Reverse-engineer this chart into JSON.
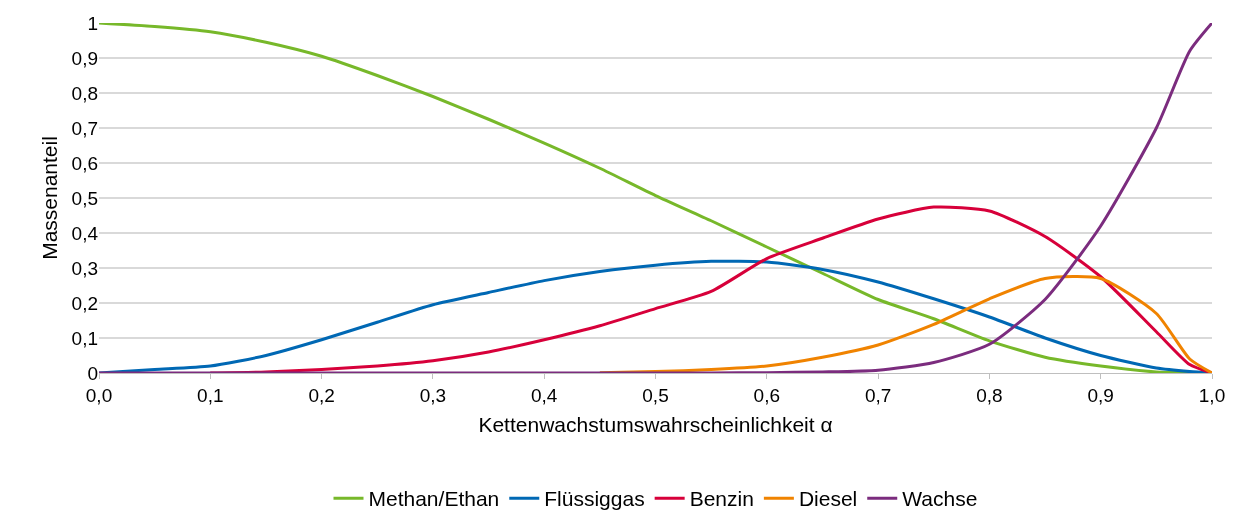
{
  "chart_data": {
    "type": "line",
    "xlabel": "Kettenwachstumswahrscheinlichkeit α",
    "ylabel": "Massenanteil",
    "x": [
      0,
      0.05,
      0.1,
      0.15,
      0.2,
      0.25,
      0.3,
      0.35,
      0.4,
      0.45,
      0.5,
      0.55,
      0.6,
      0.65,
      0.7,
      0.75,
      0.8,
      0.85,
      0.9,
      0.95,
      0.98,
      1
    ],
    "series": [
      {
        "name": "Methan/Ethan",
        "color": "#77b82a",
        "values": [
          1,
          0.99,
          0.975,
          0.945,
          0.905,
          0.85,
          0.79,
          0.725,
          0.657,
          0.585,
          0.507,
          0.435,
          0.36,
          0.285,
          0.21,
          0.155,
          0.092,
          0.045,
          0.02,
          0.003,
          0.001,
          0
        ]
      },
      {
        "name": "Flüssiggas",
        "color": "#0068b4",
        "values": [
          0,
          0.01,
          0.02,
          0.05,
          0.095,
          0.145,
          0.195,
          0.23,
          0.264,
          0.29,
          0.308,
          0.319,
          0.317,
          0.296,
          0.26,
          0.212,
          0.16,
          0.1,
          0.05,
          0.014,
          0.004,
          0
        ]
      },
      {
        "name": "Benzin",
        "color": "#d7003a",
        "values": [
          null,
          null,
          0,
          0.003,
          0.01,
          0.02,
          0.035,
          0.06,
          0.095,
          0.135,
          0.184,
          0.233,
          0.327,
          0.385,
          0.44,
          0.474,
          0.463,
          0.39,
          0.275,
          0.118,
          0.024,
          0
        ]
      },
      {
        "name": "Diesel",
        "color": "#f08300",
        "values": [
          null,
          null,
          null,
          null,
          null,
          null,
          null,
          null,
          null,
          0.001,
          0.004,
          0.01,
          0.02,
          0.045,
          0.08,
          0.139,
          0.212,
          0.27,
          0.27,
          0.17,
          0.04,
          0
        ]
      },
      {
        "name": "Wachse",
        "color": "#7b2c7e",
        "values": [
          0,
          0,
          0,
          0,
          0,
          0,
          0,
          0,
          0,
          0,
          0,
          0,
          0.001,
          0.003,
          0.008,
          0.03,
          0.082,
          0.21,
          0.42,
          0.7,
          0.92,
          1
        ]
      }
    ],
    "xlim": [
      0,
      1
    ],
    "xticks": [
      {
        "value": 0,
        "label": "0,0"
      },
      {
        "value": 0.1,
        "label": "0,1"
      },
      {
        "value": 0.2,
        "label": "0,2"
      },
      {
        "value": 0.3,
        "label": "0,3"
      },
      {
        "value": 0.4,
        "label": "0,4"
      },
      {
        "value": 0.5,
        "label": "0,5"
      },
      {
        "value": 0.6,
        "label": "0,6"
      },
      {
        "value": 0.7,
        "label": "0,7"
      },
      {
        "value": 0.8,
        "label": "0,8"
      },
      {
        "value": 0.9,
        "label": "0,9"
      },
      {
        "value": 1,
        "label": "1,0"
      }
    ],
    "ylim": [
      0,
      1
    ],
    "yticks": [
      0,
      {
        "value": 0.1,
        "label": "0,1"
      },
      {
        "value": 0.2,
        "label": "0,2"
      },
      {
        "value": 0.3,
        "label": "0,3"
      },
      {
        "value": 0.4,
        "label": "0,4"
      },
      {
        "value": 0.5,
        "label": "0,5"
      },
      {
        "value": 0.6,
        "label": "0,6"
      },
      {
        "value": 0.7,
        "label": "0,7"
      },
      {
        "value": 0.8,
        "label": "0,8"
      },
      {
        "value": 0.9,
        "label": "0,9"
      },
      1
    ],
    "grid": "y",
    "legend": "bottom",
    "marker": "none",
    "line_style": "solid"
  }
}
